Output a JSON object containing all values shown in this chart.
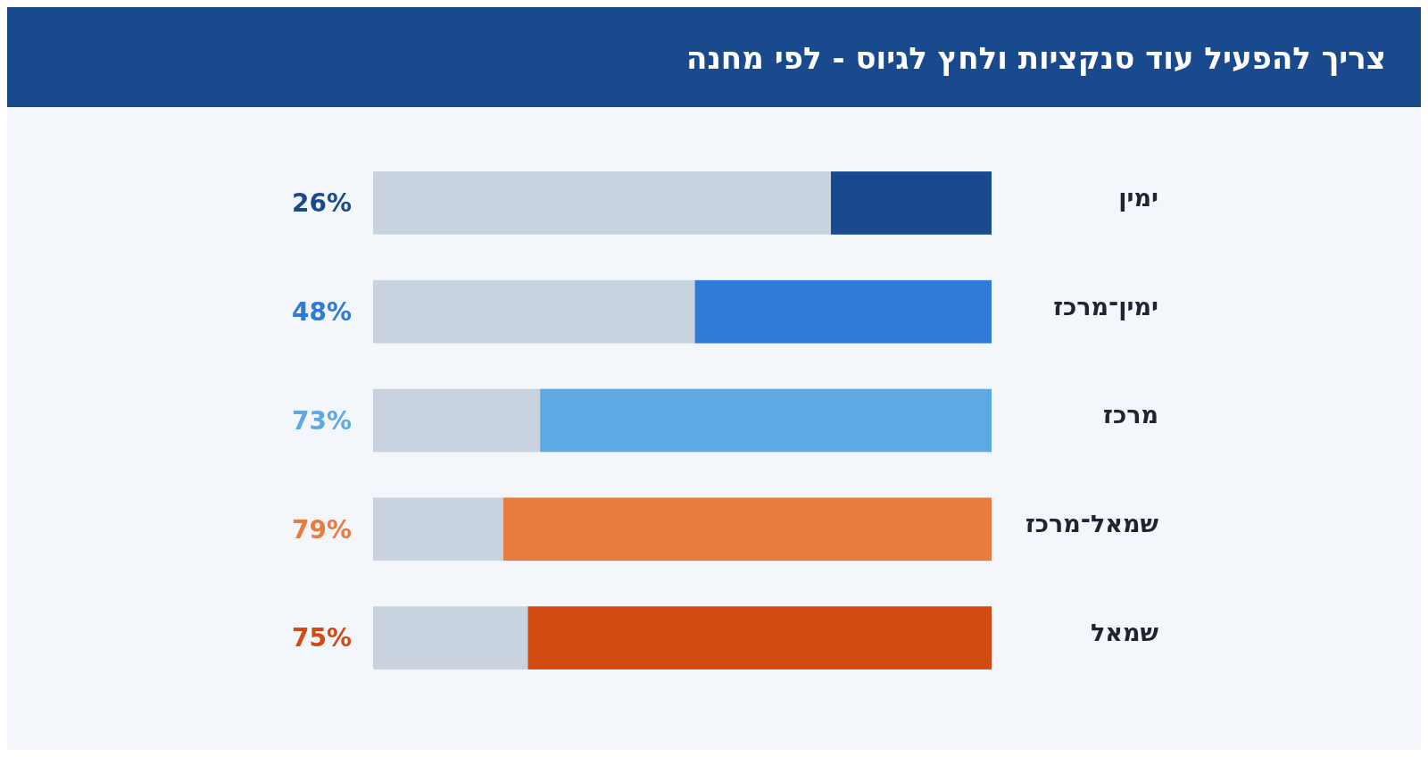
{
  "chart_data": {
    "type": "bar",
    "title": "צריך להפעיל עוד סנקציות ולחץ לגיוס - לפי מחנה",
    "orientation": "horizontal",
    "stacked": true,
    "categories": [
      "ימין",
      "ימין־מרכז",
      "מרכז",
      "שמאל־מרכז",
      "שמאל"
    ],
    "series": [
      {
        "colors": [
          "#1a4a8e",
          "#2f7ad4",
          "#5ea9e4",
          "#e87b3e",
          "#d04a12"
        ],
        "values": [
          26,
          48,
          73,
          79,
          75
        ],
        "value_labels": [
          "26%",
          "48%",
          "73%",
          "79%",
          "75%"
        ]
      },
      {
        "color": "#c9d3df",
        "values": [
          74,
          52,
          27,
          21,
          25
        ]
      }
    ],
    "xlim": [
      100,
      0
    ],
    "tick_labels": "y"
  }
}
